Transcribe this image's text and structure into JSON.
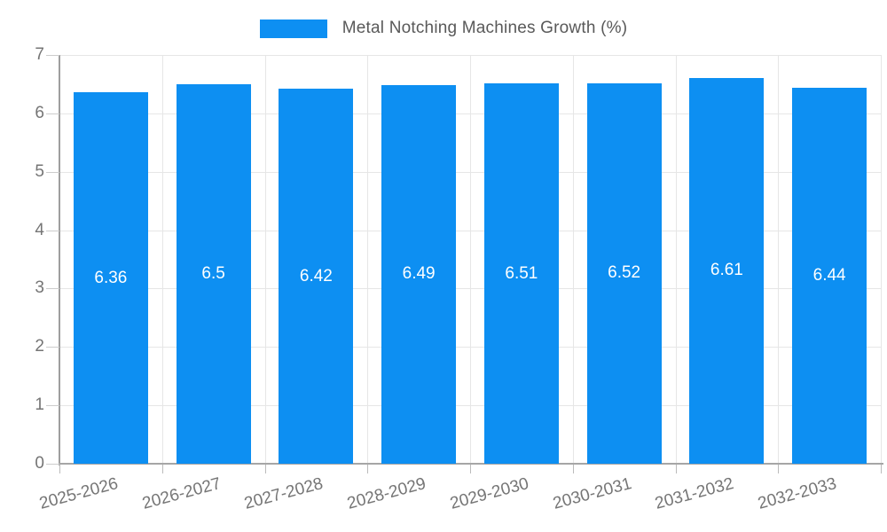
{
  "legend": {
    "title": "Metal Notching Machines Growth (%)"
  },
  "colors": {
    "bar": "#0d8ff2",
    "grid": "#e6e6e6",
    "axis": "#9e9e9e",
    "tick_text": "#757575",
    "title_text": "#595959",
    "bar_label_text": "#ffffff",
    "background": "#ffffff"
  },
  "chart_data": {
    "type": "bar",
    "title": "Metal Notching Machines Growth (%)",
    "categories": [
      "2025-2026",
      "2026-2027",
      "2027-2028",
      "2028-2029",
      "2029-2030",
      "2030-2031",
      "2031-2032",
      "2032-2033"
    ],
    "values": [
      6.36,
      6.5,
      6.42,
      6.49,
      6.51,
      6.52,
      6.61,
      6.44
    ],
    "value_labels": [
      "6.36",
      "6.5",
      "6.42",
      "6.49",
      "6.51",
      "6.52",
      "6.61",
      "6.44"
    ],
    "xlabel": "",
    "ylabel": "",
    "ylim": [
      0,
      7
    ],
    "yticks": [
      0,
      1,
      2,
      3,
      4,
      5,
      6,
      7
    ],
    "grid": true,
    "legend_position": "top",
    "value_label_position": "inside-center"
  }
}
